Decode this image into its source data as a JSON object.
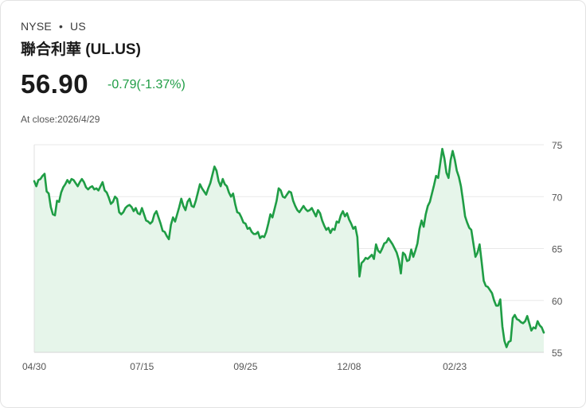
{
  "header": {
    "exchange": "NYSE",
    "separator": "•",
    "market": "US",
    "title": "聯合利華 (UL.US)",
    "price": "56.90",
    "change": "-0.79(-1.37%)",
    "close_label": "At close:2026/4/29"
  },
  "colors": {
    "line": "#1f9d45",
    "fill": "#e6f5ea",
    "grid": "#e8e8e8",
    "axis_text": "#555555"
  },
  "chart_data": {
    "type": "area",
    "title": "",
    "xlabel": "",
    "ylabel": "",
    "ylim": [
      55,
      75
    ],
    "yticks": [
      75,
      70,
      65,
      60,
      55
    ],
    "y_axis_position": "right",
    "grid": true,
    "x_ticks": [
      {
        "label": "04/30",
        "index": 0
      },
      {
        "label": "07/15",
        "index": 52
      },
      {
        "label": "09/25",
        "index": 102
      },
      {
        "label": "12/08",
        "index": 152
      },
      {
        "label": "02/23",
        "index": 203
      }
    ],
    "series": [
      {
        "name": "UL.US",
        "values": [
          71.5,
          71.0,
          71.6,
          71.7,
          72.0,
          72.2,
          70.5,
          70.3,
          69.0,
          68.3,
          68.2,
          69.6,
          69.5,
          70.4,
          70.9,
          71.2,
          71.6,
          71.3,
          71.7,
          71.6,
          71.3,
          71.0,
          71.4,
          71.7,
          71.4,
          70.9,
          70.7,
          70.9,
          71.0,
          70.7,
          70.8,
          70.6,
          71.0,
          71.4,
          70.6,
          70.4,
          69.9,
          69.3,
          69.5,
          70.0,
          69.8,
          68.5,
          68.3,
          68.5,
          68.9,
          69.1,
          69.2,
          69.0,
          68.6,
          68.9,
          68.4,
          68.3,
          68.9,
          68.3,
          67.7,
          67.6,
          67.4,
          67.6,
          68.3,
          68.6,
          68.0,
          67.4,
          66.7,
          66.6,
          66.2,
          65.9,
          67.3,
          68.0,
          67.6,
          68.3,
          69.0,
          69.8,
          69.1,
          68.7,
          69.5,
          69.8,
          69.1,
          69.0,
          69.6,
          70.4,
          71.2,
          70.8,
          70.5,
          70.2,
          70.8,
          71.3,
          72.1,
          72.9,
          72.5,
          71.5,
          71.0,
          71.7,
          71.2,
          71.0,
          70.4,
          70.0,
          70.3,
          69.3,
          68.5,
          68.4,
          68.0,
          67.5,
          67.4,
          66.9,
          67.0,
          66.6,
          66.4,
          66.4,
          66.6,
          66.0,
          66.2,
          66.1,
          66.6,
          67.4,
          68.3,
          68.0,
          68.8,
          69.6,
          70.8,
          70.6,
          70.0,
          69.9,
          70.2,
          70.5,
          70.4,
          69.6,
          69.1,
          68.7,
          68.5,
          68.8,
          69.1,
          68.8,
          68.6,
          68.7,
          68.9,
          68.5,
          68.1,
          68.7,
          68.4,
          67.7,
          67.2,
          66.8,
          67.0,
          66.5,
          66.9,
          66.8,
          67.6,
          67.5,
          68.2,
          68.6,
          68.1,
          68.4,
          67.8,
          67.4,
          66.9,
          67.1,
          66.1,
          62.3,
          63.6,
          63.8,
          64.1,
          64.0,
          64.2,
          64.4,
          64.0,
          65.4,
          64.8,
          64.6,
          65.0,
          65.5,
          65.6,
          66.0,
          65.7,
          65.4,
          65.0,
          64.6,
          63.9,
          62.6,
          64.6,
          64.4,
          63.8,
          63.9,
          64.9,
          64.2,
          64.8,
          65.5,
          66.9,
          67.7,
          67.1,
          68.3,
          69.1,
          69.5,
          70.3,
          71.1,
          72.0,
          71.8,
          73.2,
          74.6,
          73.7,
          72.3,
          71.8,
          73.5,
          74.4,
          73.6,
          72.5,
          71.9,
          71.0,
          69.6,
          68.1,
          67.5,
          67.0,
          66.8,
          65.5,
          64.2,
          64.6,
          65.4,
          63.7,
          61.9,
          61.4,
          61.3,
          61.0,
          60.7,
          60.0,
          59.5,
          59.5,
          60.1,
          57.5,
          56.1,
          55.5,
          56.0,
          56.1,
          58.3,
          58.6,
          58.2,
          58.1,
          57.9,
          57.8,
          58.0,
          58.5,
          57.8,
          57.1,
          57.4,
          57.3,
          58.0,
          57.6,
          57.4,
          56.9
        ]
      }
    ]
  }
}
